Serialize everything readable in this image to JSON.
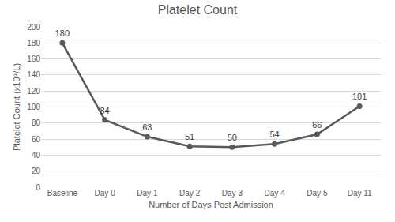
{
  "chart_data": {
    "type": "line",
    "title": "Platelet Count",
    "x_label": "Number of Days Post Admission",
    "y_label": "Platelet Count (x10⁹/L)",
    "categories": [
      "Baseline",
      "Day 0",
      "Day 1",
      "Day 2",
      "Day 3",
      "Day 4",
      "Day 5",
      "Day 11"
    ],
    "values": [
      180,
      84,
      63,
      51,
      50,
      54,
      66,
      101
    ],
    "color": "#595959",
    "marker": "circle",
    "line_style": "solid",
    "ylim": [
      0,
      200
    ],
    "yticks": [
      0,
      20,
      40,
      60,
      80,
      100,
      120,
      140,
      160,
      180,
      200
    ],
    "grid": true,
    "data_labels": true
  }
}
